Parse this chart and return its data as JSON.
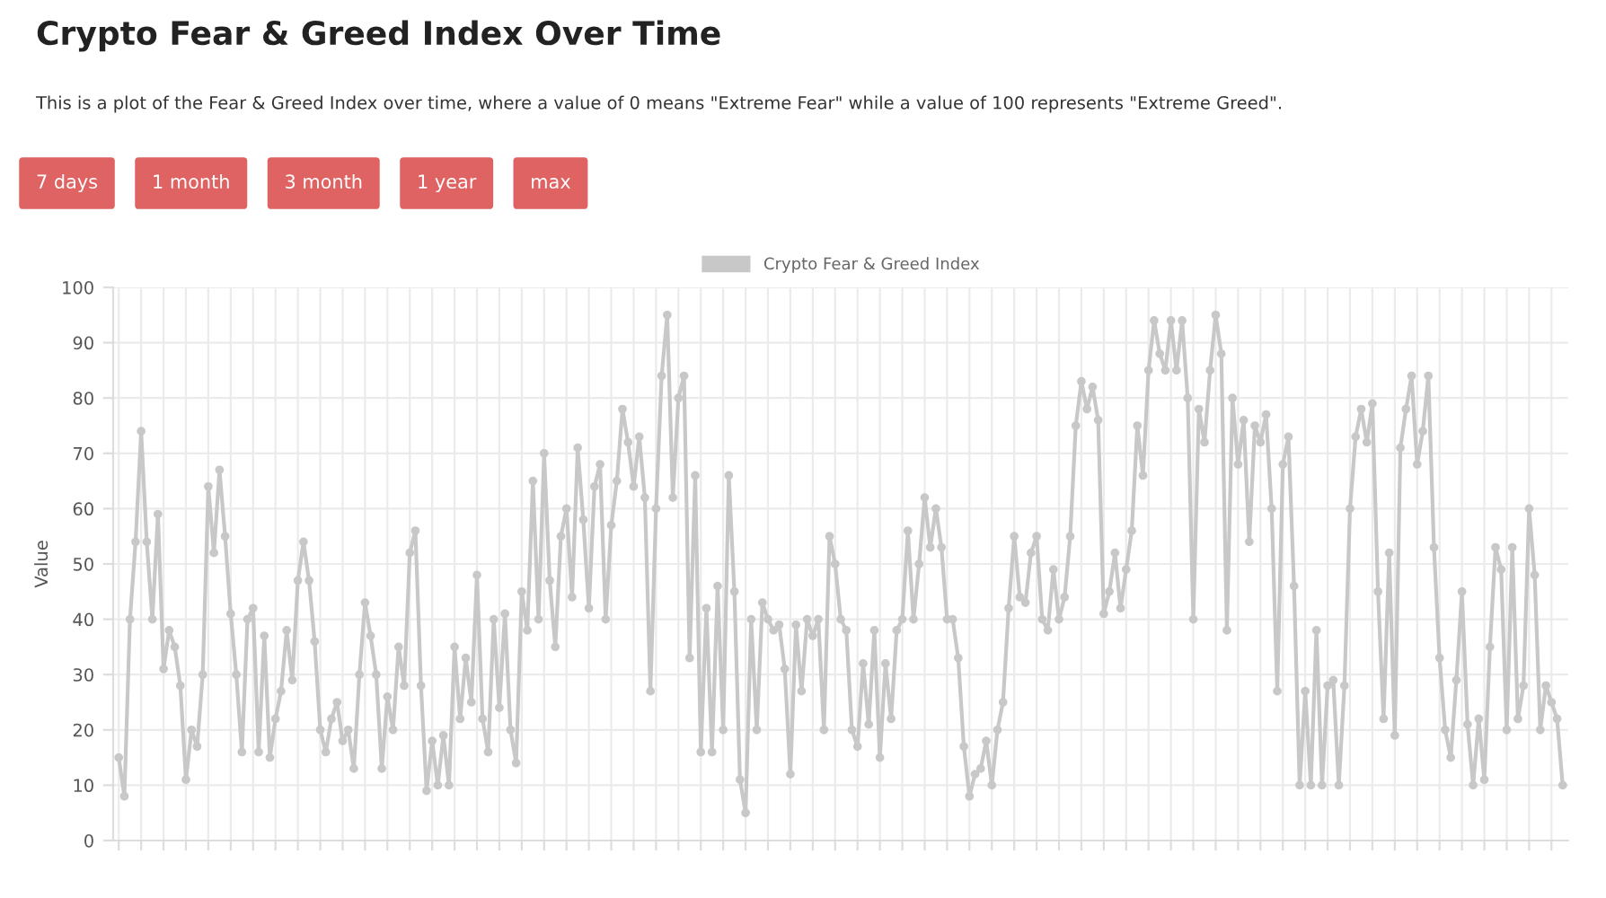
{
  "chart_data": {
    "type": "line",
    "title": "Crypto Fear & Greed Index Over Time",
    "subtitle": "This is a plot of the Fear & Greed Index over time, where a value of 0 means \"Extreme Fear\" while a value of 100 represents \"Extreme Greed\".",
    "annotations": [
      "7 days",
      "1 month",
      "3 month",
      "1 year",
      "max"
    ],
    "ylabel": "Value",
    "ylim": [
      0,
      100
    ],
    "yticks": [
      0,
      10,
      20,
      30,
      40,
      50,
      60,
      70,
      80,
      90,
      100
    ],
    "grid": true,
    "legend": "top",
    "marker": "circle",
    "line_style": "solid",
    "tick_labels": "y",
    "categories": [
      null,
      null,
      null,
      null,
      null,
      null,
      null,
      null,
      null,
      null,
      null,
      null,
      null,
      null,
      null,
      null,
      null,
      null,
      null,
      null,
      null,
      null,
      null,
      null,
      null,
      null,
      null,
      null,
      null,
      null,
      null,
      null,
      null,
      null,
      null,
      null,
      null,
      null,
      null,
      null,
      null,
      null,
      null,
      null,
      null,
      null,
      null,
      null,
      null,
      null,
      null,
      null,
      null,
      null,
      null,
      null,
      null,
      null,
      null,
      null,
      null,
      null,
      null,
      null,
      null,
      null,
      null,
      null,
      null,
      null,
      null,
      null,
      null,
      null,
      null,
      null,
      null,
      null,
      null,
      null,
      null,
      null,
      null,
      null,
      null,
      null,
      null,
      null,
      null,
      null,
      null,
      null,
      null,
      null,
      null,
      null,
      null,
      null,
      null,
      null,
      null,
      null,
      null,
      null,
      null,
      null,
      null,
      null,
      null,
      null,
      null,
      null,
      null,
      null,
      null,
      null,
      null,
      null,
      null,
      null,
      null,
      null,
      null,
      null,
      null,
      null,
      null,
      null,
      null,
      null,
      null,
      null,
      null,
      null,
      null,
      null,
      null,
      null,
      null,
      null,
      null,
      null,
      null,
      null,
      null,
      null,
      null,
      null,
      null,
      null,
      null,
      null,
      null,
      null,
      null,
      null,
      null,
      null,
      null,
      null,
      null,
      null,
      null,
      null,
      null,
      null,
      null,
      null,
      null,
      null,
      null,
      null,
      null,
      null,
      null,
      null,
      null,
      null,
      null,
      null,
      null,
      null,
      null,
      null,
      null,
      null,
      null,
      null,
      null,
      null,
      null,
      null,
      null,
      null,
      null,
      null,
      null,
      null,
      null,
      null,
      null,
      null,
      null,
      null,
      null,
      null,
      null,
      null,
      null,
      null,
      null,
      null,
      null,
      null,
      null,
      null,
      null,
      null,
      null,
      null,
      null,
      null,
      null,
      null,
      null,
      null,
      null,
      null,
      null,
      null,
      null,
      null,
      null,
      null,
      null,
      null,
      null,
      null,
      null,
      null,
      null,
      null,
      null,
      null,
      null,
      null,
      null,
      null,
      null,
      null,
      null,
      null,
      null,
      null,
      null,
      null,
      null,
      null,
      null
    ],
    "series": [
      {
        "name": "Crypto Fear & Greed Index",
        "color": "#c8c8c8",
        "values": [
          15,
          8,
          40,
          54,
          74,
          54,
          40,
          59,
          31,
          38,
          35,
          28,
          11,
          20,
          17,
          30,
          64,
          52,
          67,
          55,
          41,
          30,
          16,
          40,
          42,
          16,
          37,
          15,
          22,
          27,
          38,
          29,
          47,
          54,
          47,
          36,
          20,
          16,
          22,
          25,
          18,
          20,
          13,
          30,
          43,
          37,
          30,
          13,
          26,
          20,
          35,
          28,
          52,
          56,
          28,
          9,
          18,
          10,
          19,
          10,
          35,
          22,
          33,
          25,
          48,
          22,
          16,
          40,
          24,
          41,
          20,
          14,
          45,
          38,
          65,
          40,
          70,
          47,
          35,
          55,
          60,
          44,
          71,
          58,
          42,
          64,
          68,
          40,
          57,
          65,
          78,
          72,
          64,
          73,
          62,
          27,
          60,
          84,
          95,
          62,
          80,
          84,
          33,
          66,
          16,
          42,
          16,
          46,
          20,
          66,
          45,
          11,
          5,
          40,
          20,
          43,
          40,
          38,
          39,
          31,
          12,
          39,
          27,
          40,
          37,
          40,
          20,
          55,
          50,
          40,
          38,
          20,
          17,
          32,
          21,
          38,
          15,
          32,
          22,
          38,
          40,
          56,
          40,
          50,
          62,
          53,
          60,
          53,
          40,
          40,
          33,
          17,
          8,
          12,
          13,
          18,
          10,
          20,
          25,
          42,
          55,
          44,
          43,
          52,
          55,
          40,
          38,
          49,
          40,
          44,
          55,
          75,
          83,
          78,
          82,
          76,
          41,
          45,
          52,
          42,
          49,
          56,
          75,
          66,
          85,
          94,
          88,
          85,
          94,
          85,
          94,
          80,
          40,
          78,
          72,
          85,
          95,
          88,
          38,
          80,
          68,
          76,
          54,
          75,
          72,
          77,
          60,
          27,
          68,
          73,
          46,
          10,
          27,
          10,
          38,
          10,
          28,
          29,
          10,
          28,
          60,
          73,
          78,
          72,
          79,
          45,
          22,
          52,
          19,
          71,
          78,
          84,
          68,
          74,
          84,
          53,
          33,
          20,
          15,
          29,
          45,
          21,
          10,
          22,
          11,
          35,
          53,
          49,
          20,
          53,
          22,
          28,
          60,
          48,
          20,
          28,
          25,
          22,
          10
        ]
      }
    ]
  }
}
